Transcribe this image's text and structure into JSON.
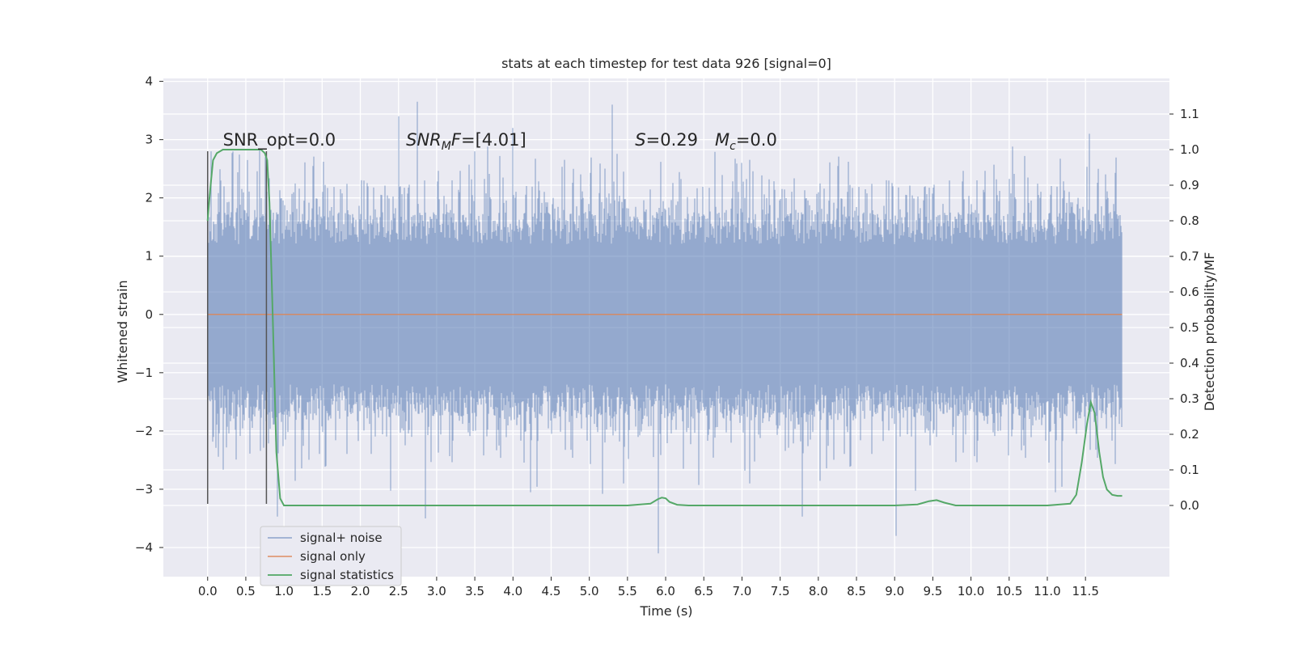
{
  "chart_data": {
    "type": "line",
    "title": "stats at each timestep for test data 926 [signal=0]",
    "xlabel": "Time (s)",
    "ylabel_left": "Whitened strain",
    "ylabel_right": "Detection probability/MF",
    "xlim": [
      -0.58,
      12.6
    ],
    "ylim_left": [
      -4.5,
      4.05
    ],
    "ylim_right": [
      -0.2,
      1.2
    ],
    "x_ticks": [
      0.0,
      0.5,
      1.0,
      1.5,
      2.0,
      2.5,
      3.0,
      3.5,
      4.0,
      4.5,
      5.0,
      5.5,
      6.0,
      6.5,
      7.0,
      7.5,
      8.0,
      8.5,
      9.0,
      9.5,
      10.0,
      10.5,
      11.0,
      11.5
    ],
    "x_tick_labels": [
      "0.0",
      "0.5",
      "1.0",
      "1.5",
      "2.0",
      "2.5",
      "3.0",
      "3.5",
      "4.0",
      "4.5",
      "5.0",
      "5.5",
      "6.0",
      "6.5",
      "7.0",
      "7.5",
      "8.0",
      "8.5",
      "9.0",
      "9.5",
      "10.0",
      "10.5",
      "11.0",
      "11.5"
    ],
    "y_left_ticks": [
      4,
      3,
      2,
      1,
      0,
      -1,
      -2,
      -3,
      -4
    ],
    "y_left_tick_labels": [
      "4",
      "3",
      "2",
      "1",
      "0",
      "−1",
      "−2",
      "−3",
      "−4"
    ],
    "y_right_ticks": [
      1.1,
      1.0,
      0.9,
      0.8,
      0.7,
      0.6,
      0.5,
      0.4,
      0.3,
      0.2,
      0.1,
      0.0
    ],
    "y_right_tick_labels": [
      "1.1",
      "1.0",
      "0.9",
      "0.8",
      "0.7",
      "0.6",
      "0.5",
      "0.4",
      "0.3",
      "0.2",
      "0.1",
      "0.0"
    ],
    "grid": true,
    "legend_position": "lower-left",
    "series": [
      {
        "name": "signal+ noise",
        "axis": "left",
        "color": "#4c72b0",
        "x_range": [
          0.0,
          11.98
        ],
        "typical_amplitude": 1.6,
        "envelope_peaks": [
          {
            "x": 0.04,
            "y": 2.8
          },
          {
            "x": 0.75,
            "y": 2.7
          },
          {
            "x": 2.5,
            "y": 3.4
          },
          {
            "x": 2.75,
            "y": 3.65
          },
          {
            "x": 5.3,
            "y": 3.6
          },
          {
            "x": 3.5,
            "y": 2.8
          },
          {
            "x": 4.0,
            "y": 3.2
          },
          {
            "x": 11.55,
            "y": 3.1
          },
          {
            "x": 2.85,
            "y": -3.5
          },
          {
            "x": 5.9,
            "y": -4.1
          },
          {
            "x": 9.02,
            "y": -3.8
          },
          {
            "x": 5.45,
            "y": -2.9
          },
          {
            "x": 7.1,
            "y": -2.9
          }
        ]
      },
      {
        "name": "signal only",
        "axis": "left",
        "color": "#dd8452",
        "x": [
          0.0,
          11.98
        ],
        "y": [
          0.0,
          0.0
        ]
      },
      {
        "name": "signal statistics",
        "axis": "right",
        "color": "#55a868",
        "x": [
          0.0,
          0.03,
          0.07,
          0.12,
          0.2,
          0.3,
          0.4,
          0.5,
          0.6,
          0.65,
          0.7,
          0.75,
          0.78,
          0.81,
          0.85,
          0.9,
          0.95,
          1.0,
          1.5,
          2.0,
          2.5,
          3.0,
          3.5,
          4.0,
          4.5,
          5.0,
          5.5,
          5.8,
          5.9,
          5.95,
          6.0,
          6.05,
          6.15,
          6.3,
          7.0,
          8.0,
          9.0,
          9.3,
          9.45,
          9.55,
          9.65,
          9.8,
          10.5,
          11.0,
          11.3,
          11.38,
          11.45,
          11.52,
          11.57,
          11.62,
          11.68,
          11.73,
          11.78,
          11.85,
          11.92,
          11.98
        ],
        "y": [
          0.8,
          0.88,
          0.97,
          0.99,
          1.0,
          1.0,
          1.0,
          1.0,
          1.0,
          1.0,
          1.0,
          0.99,
          0.97,
          0.85,
          0.55,
          0.15,
          0.02,
          0.0,
          0.0,
          0.0,
          0.0,
          0.0,
          0.0,
          0.0,
          0.0,
          0.0,
          0.0,
          0.005,
          0.018,
          0.022,
          0.02,
          0.01,
          0.002,
          0.0,
          0.0,
          0.0,
          0.0,
          0.003,
          0.012,
          0.015,
          0.008,
          0.0,
          0.0,
          0.0,
          0.005,
          0.03,
          0.12,
          0.23,
          0.29,
          0.26,
          0.15,
          0.08,
          0.045,
          0.03,
          0.027,
          0.027
        ]
      }
    ],
    "vertical_lines": [
      0.0,
      0.77
    ],
    "annotations": [
      {
        "kind": "plain",
        "text": "SNR_opt=0.0",
        "x": 0.2,
        "y": 2.9
      },
      {
        "kind": "snr_mf",
        "base": "SNR",
        "sub": "M",
        "rest": "F=[4.01]",
        "x": 2.6,
        "y": 2.9
      },
      {
        "kind": "s_mc",
        "s_text": "S",
        "s_rest": "=0.29",
        "m_text": "M",
        "m_sub": "c",
        "m_rest": "=0.0",
        "x": 5.6,
        "y": 2.9
      }
    ]
  }
}
